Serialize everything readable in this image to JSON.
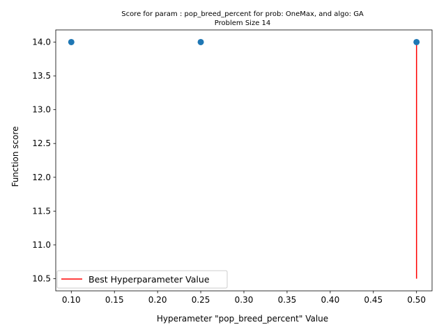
{
  "chart_data": {
    "type": "scatter",
    "title_line1": "Score for param : pop_breed_percent for prob: OneMax, and algo: GA",
    "title_line2": "Problem Size 14",
    "xlabel": "Hyperameter \"pop_breed_percent\" Value",
    "ylabel": "Function score",
    "xlim": [
      0.082,
      0.518
    ],
    "ylim": [
      10.32,
      14.18
    ],
    "xticks": [
      0.1,
      0.15,
      0.2,
      0.25,
      0.3,
      0.35,
      0.4,
      0.45,
      0.5
    ],
    "xtick_labels": [
      "0.10",
      "0.15",
      "0.20",
      "0.25",
      "0.30",
      "0.35",
      "0.40",
      "0.45",
      "0.50"
    ],
    "yticks": [
      10.5,
      11.0,
      11.5,
      12.0,
      12.5,
      13.0,
      13.5,
      14.0
    ],
    "ytick_labels": [
      "10.5",
      "11.0",
      "11.5",
      "12.0",
      "12.5",
      "13.0",
      "13.5",
      "14.0"
    ],
    "points": [
      {
        "x": 0.1,
        "y": 14.0
      },
      {
        "x": 0.25,
        "y": 14.0
      },
      {
        "x": 0.5,
        "y": 14.0
      }
    ],
    "best_line": {
      "x": 0.5,
      "ymin": 10.5,
      "ymax": 14.0
    },
    "legend_label": "Best Hyperparameter Value",
    "legend_position": "lower-left",
    "grid": false,
    "colors": {
      "points": "#1f77b4",
      "best_line": "#ff0000",
      "axes": "#000000"
    }
  }
}
